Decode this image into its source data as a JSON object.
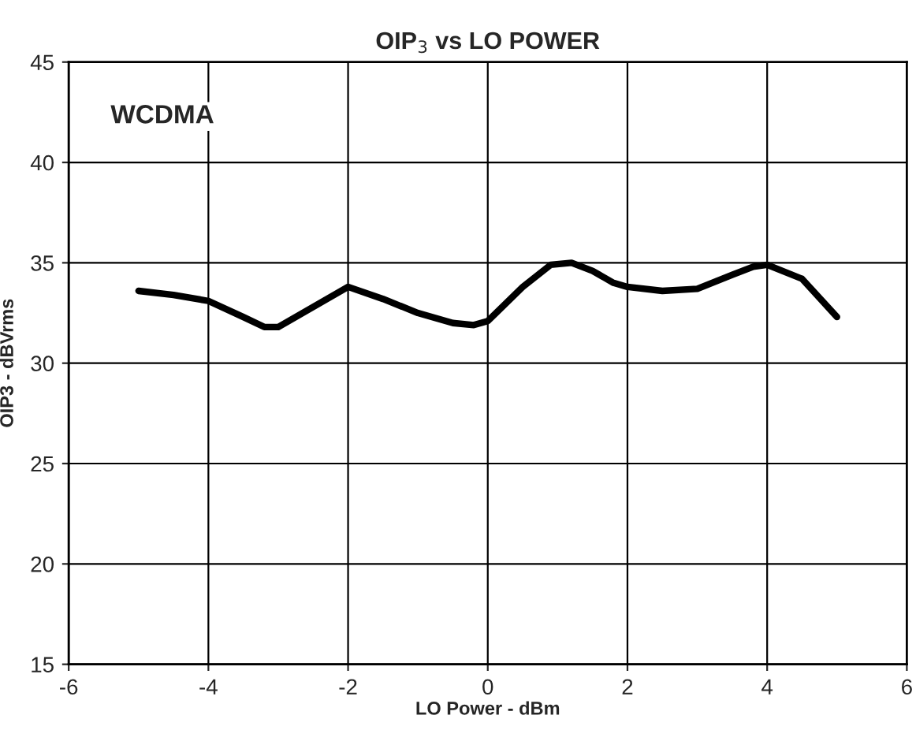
{
  "chart_data": {
    "type": "line",
    "title": "OIP$_{3}$ vs LO POWER",
    "xlabel": "LO Power - dBm",
    "ylabel": "OIP3 - dBVrms",
    "annotations": [
      "WCDMA"
    ],
    "series": [
      {
        "color": "#000000",
        "x": [
          -5,
          -4.5,
          -4,
          -3.5,
          -3.2,
          -3,
          -2.5,
          -2,
          -1.5,
          -1,
          -0.5,
          -0.2,
          0,
          0.5,
          0.9,
          1.2,
          1.5,
          1.8,
          2,
          2.5,
          3,
          3.5,
          3.8,
          4,
          4.5,
          5
        ],
        "values": [
          33.6,
          33.4,
          33.1,
          32.3,
          31.8,
          31.8,
          32.8,
          33.8,
          33.2,
          32.5,
          32.0,
          31.9,
          32.1,
          33.8,
          34.9,
          35.0,
          34.6,
          34.0,
          33.8,
          33.6,
          33.7,
          34.4,
          34.8,
          34.9,
          34.2,
          32.3
        ]
      }
    ],
    "xlim": [
      -6,
      6
    ],
    "xticks": [
      -6,
      -4,
      -2,
      0,
      2,
      4,
      6
    ],
    "ylim": [
      15,
      45
    ],
    "yticks": [
      15,
      20,
      25,
      30,
      35,
      40,
      45
    ],
    "grid": true,
    "line_style": "solid",
    "marker": "none"
  }
}
